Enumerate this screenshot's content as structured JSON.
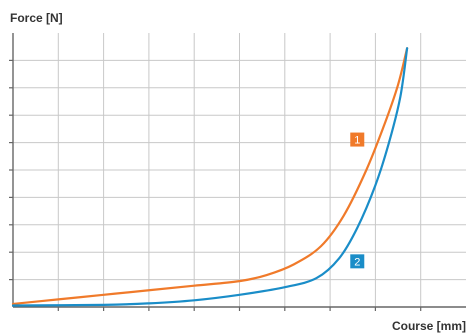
{
  "chart_data": {
    "type": "line",
    "xlabel": "Course [mm]",
    "ylabel": "Force [N]",
    "xlim": [
      0,
      10
    ],
    "ylim": [
      0,
      9
    ],
    "grid": true,
    "series": [
      {
        "name": "1",
        "color": "#f07a2a",
        "points": [
          [
            0,
            0.1
          ],
          [
            1,
            0.25
          ],
          [
            2,
            0.4
          ],
          [
            3,
            0.55
          ],
          [
            4,
            0.7
          ],
          [
            5,
            0.85
          ],
          [
            5.6,
            1.05
          ],
          [
            6.2,
            1.4
          ],
          [
            6.8,
            2.0
          ],
          [
            7.3,
            3.0
          ],
          [
            7.8,
            4.5
          ],
          [
            8.2,
            6.0
          ],
          [
            8.5,
            7.3
          ],
          [
            8.7,
            8.5
          ]
        ]
      },
      {
        "name": "2",
        "color": "#1a8dc8",
        "points": [
          [
            0,
            0.05
          ],
          [
            2,
            0.07
          ],
          [
            3,
            0.12
          ],
          [
            4,
            0.22
          ],
          [
            5,
            0.4
          ],
          [
            6,
            0.65
          ],
          [
            6.7,
            0.95
          ],
          [
            7.2,
            1.6
          ],
          [
            7.6,
            2.6
          ],
          [
            8.0,
            4.0
          ],
          [
            8.3,
            5.4
          ],
          [
            8.55,
            6.9
          ],
          [
            8.7,
            8.5
          ]
        ]
      }
    ],
    "labels": [
      {
        "text": "1",
        "color": "#f07a2a",
        "at": [
          7.6,
          5.5
        ]
      },
      {
        "text": "2",
        "color": "#1a8dc8",
        "at": [
          7.6,
          1.5
        ]
      }
    ]
  }
}
